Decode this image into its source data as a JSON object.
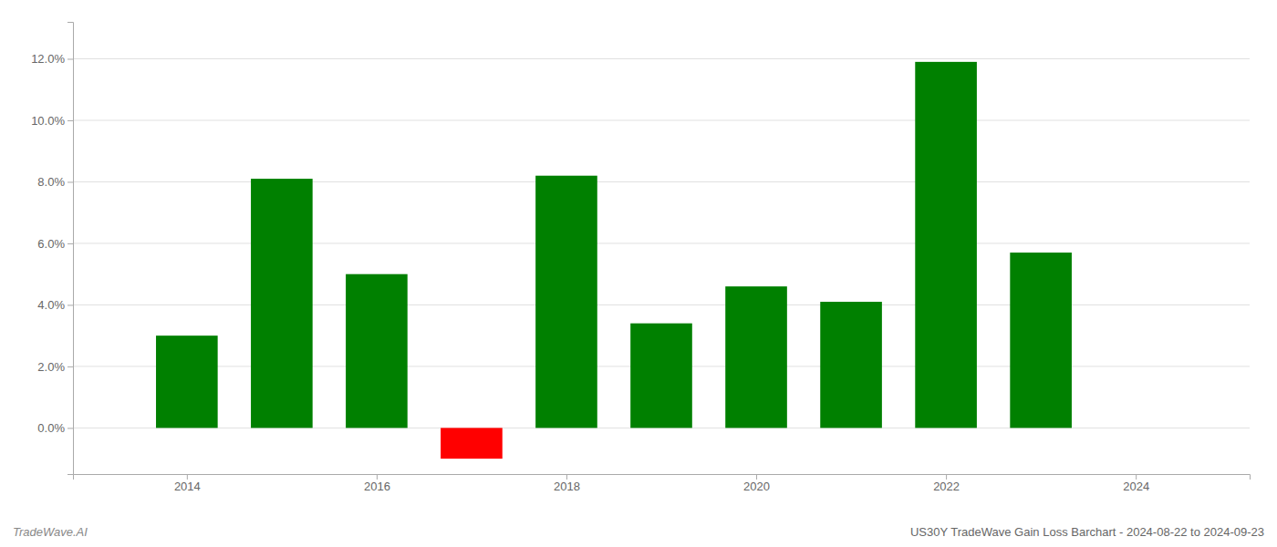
{
  "chart_data": {
    "type": "bar",
    "title": "US30Y TradeWave Gain Loss Barchart - 2024-08-22 to 2024-09-23",
    "annotations": [
      {
        "text": "TradeWave.AI"
      }
    ],
    "x": [
      2014,
      2015,
      2016,
      2017,
      2018,
      2019,
      2020,
      2021,
      2022,
      2023
    ],
    "values": [
      0.03,
      0.081,
      0.05,
      -0.01,
      0.082,
      0.034,
      0.046,
      0.041,
      0.119,
      0.057
    ],
    "colors": [
      "#008000",
      "#008000",
      "#008000",
      "#ff0000",
      "#008000",
      "#008000",
      "#008000",
      "#008000",
      "#008000",
      "#008000"
    ],
    "xlim": [
      2012.8,
      2025.2
    ],
    "xticks": [
      2014,
      2016,
      2018,
      2020,
      2022,
      2024
    ],
    "ylim": [
      -0.015,
      0.132
    ],
    "yticks": [
      {
        "value": 0,
        "label": "0.0%"
      },
      {
        "value": 0.02,
        "label": "2.0%"
      },
      {
        "value": 0.04,
        "label": "4.0%"
      },
      {
        "value": 0.06,
        "label": "6.0%"
      },
      {
        "value": 0.08,
        "label": "8.0%"
      },
      {
        "value": 0.1,
        "label": "10.0%"
      },
      {
        "value": 0.12,
        "label": "12.0%"
      }
    ],
    "grid": true
  }
}
